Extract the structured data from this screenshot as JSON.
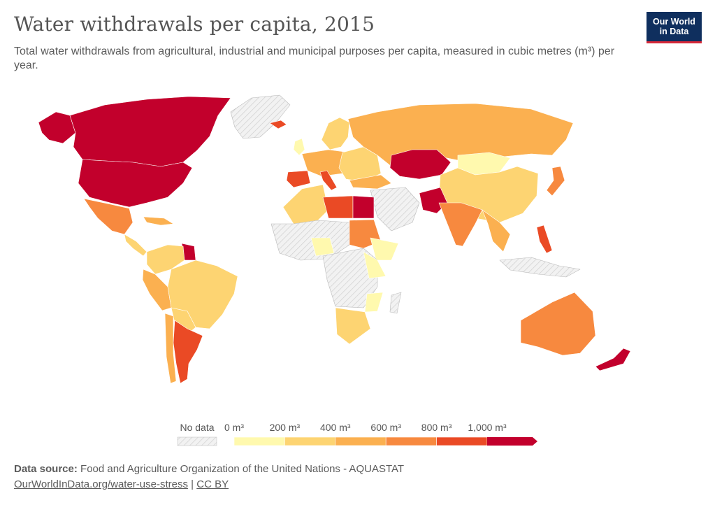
{
  "header": {
    "title": "Water withdrawals per capita, 2015",
    "subtitle": "Total water withdrawals from agricultural, industrial and municipal purposes per capita, measured in cubic metres (m³) per year."
  },
  "logo": {
    "line1": "Our World",
    "line2": "in Data"
  },
  "legend": {
    "no_data_label": "No data",
    "bins": [
      {
        "label": "0 m³",
        "color": "#fff9ae"
      },
      {
        "label": "200 m³",
        "color": "#fdd472"
      },
      {
        "label": "400 m³",
        "color": "#fbb050"
      },
      {
        "label": "600 m³",
        "color": "#f7893f"
      },
      {
        "label": "800 m³",
        "color": "#ea4a25"
      },
      {
        "label": "1,000 m³",
        "color": "#c2002c"
      }
    ]
  },
  "footer": {
    "source_label": "Data source:",
    "source_text": "Food and Agriculture Organization of the United Nations - AQUASTAT",
    "link": "OurWorldInData.org/water-use-stress",
    "separator": "|",
    "license": "CC BY"
  },
  "colors": {
    "b0": "#fff9ae",
    "b1": "#fdd472",
    "b2": "#fbb050",
    "b3": "#f7893f",
    "b4": "#ea4a25",
    "b5": "#c2002c",
    "no_data": "#e6e6e6"
  }
}
